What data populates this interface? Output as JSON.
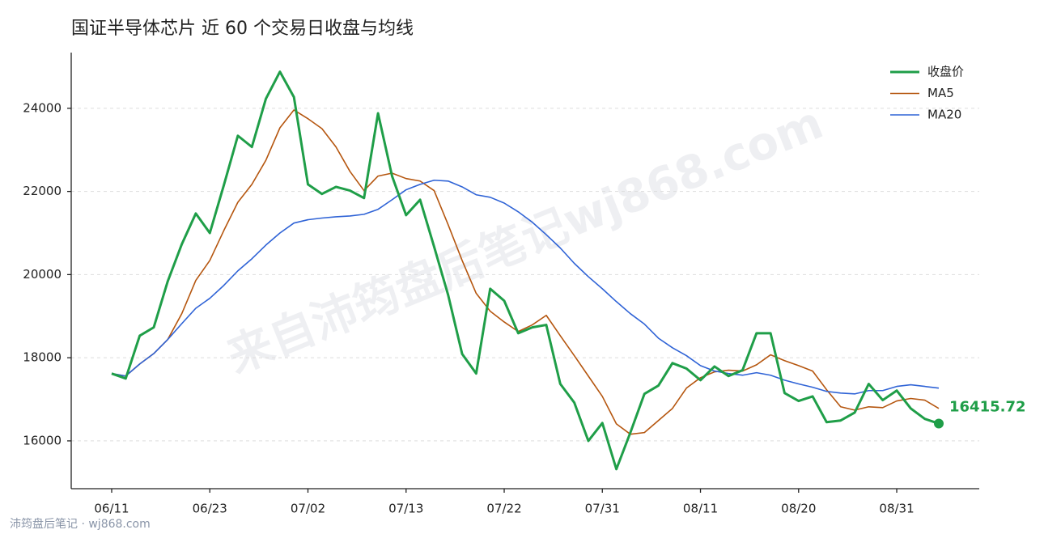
{
  "chart_data": {
    "type": "line",
    "title": "国证半导体芯片 近 60 个交易日收盘与均线",
    "watermark": "来自沛筠盘后笔记wj868.com",
    "footer": "沛筠盘后笔记 · wj868.com",
    "categories": [
      "06/11",
      null,
      null,
      null,
      null,
      null,
      null,
      "06/23",
      null,
      null,
      null,
      null,
      null,
      null,
      "07/02",
      null,
      null,
      null,
      null,
      null,
      null,
      "07/13",
      null,
      null,
      null,
      null,
      null,
      null,
      "07/22",
      null,
      null,
      null,
      null,
      null,
      null,
      "07/31",
      null,
      null,
      null,
      null,
      null,
      null,
      "08/11",
      null,
      null,
      null,
      null,
      null,
      null,
      "08/20",
      null,
      null,
      null,
      null,
      null,
      null,
      "08/31",
      null,
      null,
      null
    ],
    "series": [
      {
        "name": "收盘价",
        "color": "#1f9e48",
        "values": [
          17620,
          17500,
          18530,
          18730,
          19840,
          20730,
          21470,
          21000,
          22150,
          23340,
          23070,
          24230,
          24880,
          24270,
          22170,
          21940,
          22110,
          22020,
          21840,
          23880,
          22370,
          21430,
          21800,
          20670,
          19510,
          18090,
          17620,
          19660,
          19370,
          18590,
          18730,
          18790,
          17370,
          16920,
          16000,
          16430,
          15320,
          16200,
          17130,
          17330,
          17870,
          17740,
          17460,
          17790,
          17560,
          17700,
          18590,
          18590,
          17150,
          16960,
          17070,
          16450,
          16490,
          16680,
          17370,
          16980,
          17210,
          16780,
          16530,
          16415.72
        ]
      },
      {
        "name": "MA5",
        "color": "#b5560f",
        "values": [
          17620,
          17560,
          17850,
          18100,
          18440,
          19060,
          19860,
          20340,
          21060,
          21740,
          22170,
          22750,
          23530,
          23960,
          23750,
          23510,
          23070,
          22480,
          22020,
          22370,
          22440,
          22310,
          22250,
          22020,
          21200,
          20340,
          19550,
          19120,
          18860,
          18630,
          18790,
          19020,
          18530,
          18050,
          17560,
          17070,
          16410,
          16160,
          16200,
          16490,
          16780,
          17270,
          17520,
          17660,
          17700,
          17680,
          17830,
          18070,
          17930,
          17810,
          17680,
          17230,
          16820,
          16740,
          16820,
          16800,
          16960,
          17020,
          16980,
          16780
        ]
      },
      {
        "name": "MA20",
        "color": "#2f63d6",
        "values": [
          17620,
          17560,
          17850,
          18100,
          18440,
          18820,
          19190,
          19430,
          19740,
          20090,
          20380,
          20710,
          21000,
          21240,
          21320,
          21360,
          21390,
          21410,
          21450,
          21570,
          21800,
          22040,
          22170,
          22270,
          22250,
          22110,
          21920,
          21860,
          21720,
          21510,
          21260,
          20960,
          20640,
          20270,
          19950,
          19660,
          19350,
          19060,
          18810,
          18470,
          18240,
          18050,
          17810,
          17680,
          17620,
          17580,
          17640,
          17580,
          17460,
          17370,
          17290,
          17190,
          17150,
          17130,
          17210,
          17210,
          17310,
          17350,
          17310,
          17270
        ]
      }
    ],
    "ylim": [
      14850,
      25340
    ],
    "yticks": [
      16000,
      18000,
      20000,
      22000,
      24000
    ],
    "grid": true,
    "legend": "upper right"
  }
}
